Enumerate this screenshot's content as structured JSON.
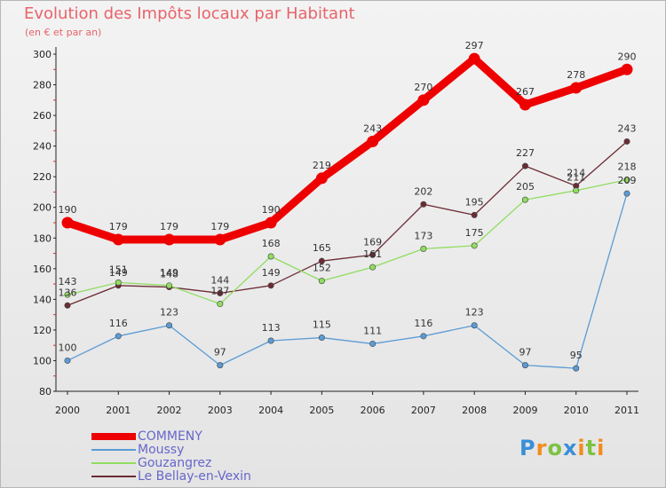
{
  "chart_data": {
    "type": "line",
    "title": "Evolution des Impôts locaux par Habitant",
    "subtitle": "(en € et par an)",
    "categories": [
      "2000",
      "2001",
      "2002",
      "2003",
      "2004",
      "2005",
      "2006",
      "2007",
      "2008",
      "2009",
      "2010",
      "2011"
    ],
    "ylim": [
      80,
      300
    ],
    "yticks": [
      80,
      100,
      120,
      140,
      160,
      180,
      200,
      220,
      240,
      260,
      280,
      300
    ],
    "series": [
      {
        "name": "COMMENY",
        "color": "#ee0000",
        "values": [
          190,
          179,
          179,
          179,
          190,
          219,
          243,
          270,
          297,
          267,
          278,
          290
        ]
      },
      {
        "name": "Moussy",
        "color": "#5b9bd5",
        "values": [
          100,
          116,
          123,
          97,
          113,
          115,
          111,
          116,
          123,
          97,
          95,
          209
        ]
      },
      {
        "name": "Gouzangrez",
        "color": "#90dd60",
        "values": [
          143,
          151,
          149,
          137,
          168,
          152,
          161,
          173,
          175,
          205,
          211,
          218
        ]
      },
      {
        "name": "Le Bellay-en-Vexin",
        "color": "#6b2c34",
        "values": [
          136,
          149,
          148,
          144,
          149,
          165,
          169,
          202,
          195,
          227,
          214,
          243
        ]
      }
    ]
  },
  "logo": {
    "text": "Proxiti",
    "letters": [
      "P",
      "r",
      "o",
      "x",
      "i",
      "t",
      "i"
    ]
  }
}
